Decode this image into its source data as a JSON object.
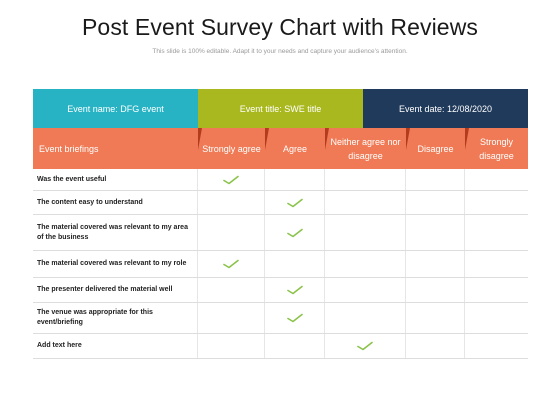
{
  "title": "Post Event Survey Chart with Reviews",
  "subtitle": "This slide is 100% editable. Adapt it to your needs and capture your audience's attention.",
  "band": {
    "event_name": "Event name: DFG event",
    "event_title": "Event title: SWE title",
    "event_date": "Event date: 12/08/2020"
  },
  "columns": [
    "Event briefings",
    "Strongly agree",
    "Agree",
    "Neither agree nor disagree",
    "Disagree",
    "Strongly disagree"
  ],
  "rows": [
    {
      "label": "Was the event useful",
      "check_col": 1
    },
    {
      "label": "The content easy to understand",
      "check_col": 2
    },
    {
      "label": "The material covered was relevant to my area of the business",
      "check_col": 2
    },
    {
      "label": "The material covered was relevant to my role",
      "check_col": 1
    },
    {
      "label": "The presenter delivered the material well",
      "check_col": 2
    },
    {
      "label": "The venue was appropriate for this event/briefing",
      "check_col": 2
    },
    {
      "label": "Add text here",
      "check_col": 3
    }
  ],
  "colors": {
    "band_1": "#27b3c4",
    "band_2": "#a9b81e",
    "band_3": "#203a5b",
    "header": "#ef7a55",
    "check": "#8bc34a"
  },
  "icon": "check-mark-icon"
}
